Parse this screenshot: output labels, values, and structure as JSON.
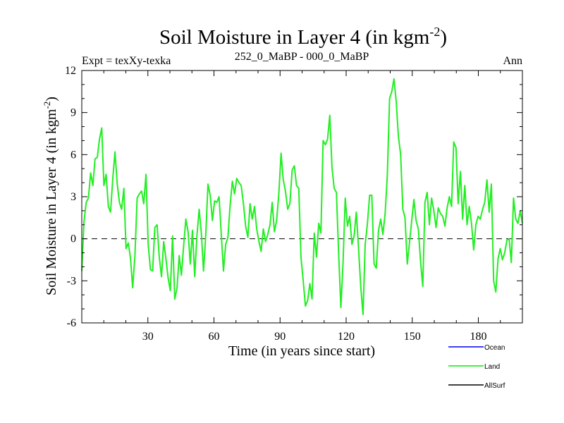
{
  "chart_data": {
    "type": "line",
    "title": "Soil Moisture in Layer 4 (in kgm",
    "title_sup": "-2",
    "title_close": ")",
    "subtitle_left": "Expt = texXy-texka",
    "subtitle_center": "252_0_MaBP - 000_0_MaBP",
    "subtitle_right": "Ann",
    "xlabel": "Time (in years since start)",
    "ylabel": "Soil Moisture in Layer 4 (in kgm",
    "ylabel_sup": "-2",
    "ylabel_close": ")",
    "xlim": [
      0,
      200
    ],
    "ylim": [
      -6,
      12
    ],
    "xticks": [
      30,
      60,
      90,
      120,
      150,
      180
    ],
    "yticks": [
      -6,
      -3,
      0,
      3,
      6,
      9,
      12
    ],
    "zero_line": 0,
    "legend": [
      {
        "name": "Ocean",
        "color": "#0000ee"
      },
      {
        "name": "Land",
        "color": "#00ee00"
      },
      {
        "name": "AllSurf",
        "color": "#000000"
      }
    ],
    "series": [
      {
        "name": "Land",
        "color": "#22ee22",
        "values": [
          -2.3,
          1.2,
          2.6,
          2.9,
          4.7,
          3.8,
          5.7,
          5.8,
          7.1,
          7.9,
          3.8,
          4.6,
          2.3,
          1.9,
          4.3,
          6.2,
          3.9,
          2.6,
          2.1,
          3.6,
          -0.7,
          -0.3,
          -1.4,
          -3.5,
          -1.2,
          2.9,
          3.2,
          3.4,
          2.5,
          4.6,
          -0.4,
          -2.2,
          -2.3,
          0.8,
          1.0,
          -1.3,
          -2.7,
          -0.2,
          -1.4,
          -2.8,
          -3.7,
          0.2,
          -4.3,
          -3.5,
          -1.2,
          -2.6,
          -0.5,
          1.4,
          0.5,
          -1.8,
          0.6,
          -2.7,
          0.2,
          2.1,
          0.4,
          -2.3,
          0.3,
          3.9,
          3.1,
          1.3,
          2.7,
          2.6,
          3.0,
          0.3,
          -2.3,
          -0.4,
          0.1,
          2.4,
          4.1,
          3.2,
          4.3,
          4.0,
          3.8,
          2.5,
          0.9,
          0.1,
          2.5,
          1.4,
          2.3,
          0.7,
          -0.2,
          -0.9,
          0.7,
          -0.2,
          0.3,
          1.0,
          2.6,
          0.5,
          1.3,
          3.2,
          6.1,
          4.2,
          3.4,
          2.1,
          2.5,
          4.9,
          5.2,
          3.8,
          3.6,
          -1.3,
          -3.0,
          -4.8,
          -4.4,
          -3.2,
          -4.3,
          0.4,
          -1.3,
          1.1,
          0.4,
          7.0,
          6.7,
          7.1,
          8.8,
          5.1,
          3.6,
          3.3,
          -1.0,
          -4.9,
          -1.7,
          2.9,
          0.9,
          1.6,
          -0.4,
          0.2,
          1.9,
          -0.7,
          -3.4,
          -5.4,
          -0.4,
          1.1,
          3.1,
          3.1,
          -1.8,
          -2.1,
          0.6,
          1.4,
          0.3,
          1.8,
          4.5,
          10.0,
          10.5,
          11.4,
          9.8,
          7.3,
          6.0,
          2.1,
          1.5,
          -1.8,
          -0.3,
          1.3,
          2.8,
          1.3,
          0.7,
          -1.6,
          -3.4,
          2.6,
          3.3,
          1.0,
          2.9,
          2.0,
          0.8,
          2.2,
          1.8,
          1.6,
          0.9,
          2.2,
          3.0,
          2.3,
          6.9,
          6.5,
          2.5,
          4.8,
          1.4,
          3.8,
          1.0,
          2.3,
          1.1,
          -0.8,
          1.0,
          1.6,
          1.4,
          2.1,
          2.6,
          4.2,
          1.9,
          3.9,
          -3.0,
          -3.8,
          -1.4,
          -0.7,
          -1.5,
          -1.0,
          -0.1,
          0.0,
          -1.7,
          2.9,
          1.4,
          1.1,
          2.0,
          1.1
        ]
      }
    ]
  }
}
